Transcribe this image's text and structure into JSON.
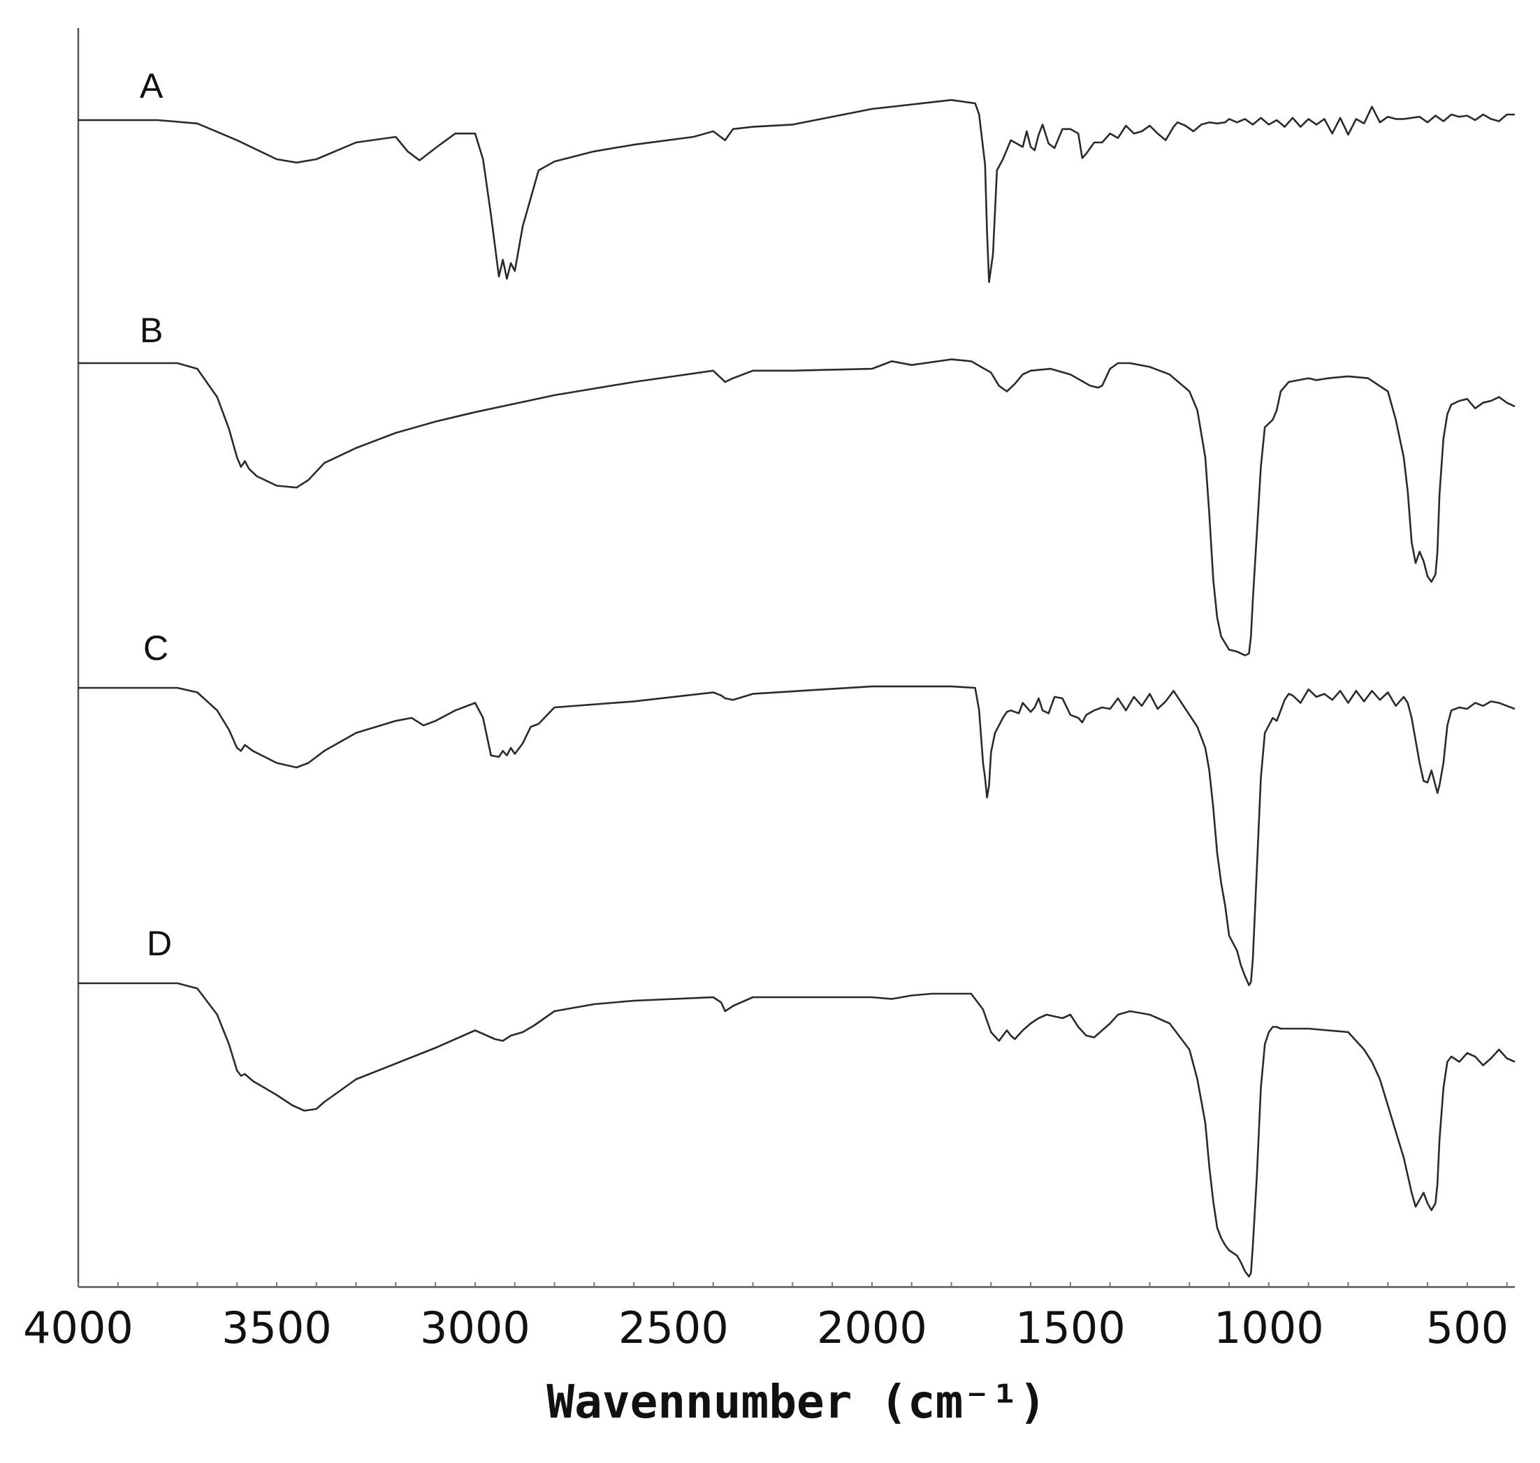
{
  "chart_data": {
    "type": "line",
    "xlabel": "Wavennumber (cm⁻¹)",
    "xlim": [
      4000,
      380
    ],
    "x_ticks": [
      4000,
      3500,
      3000,
      2500,
      2000,
      1500,
      1000,
      500
    ],
    "x_tick_labels": [
      "4000",
      "3500",
      "3000",
      "2500",
      "2000",
      "1500",
      "1000",
      "500"
    ],
    "grid": false,
    "legend": "none",
    "y_axis_note": "offset traces, no y-axis values",
    "series": [
      {
        "name": "A",
        "baseline": 0,
        "x": [
          4000,
          3800,
          3700,
          3600,
          3500,
          3450,
          3400,
          3300,
          3200,
          3170,
          3140,
          3100,
          3050,
          3000,
          2980,
          2960,
          2940,
          2930,
          2920,
          2910,
          2900,
          2880,
          2860,
          2840,
          2800,
          2700,
          2600,
          2450,
          2400,
          2370,
          2350,
          2300,
          2200,
          2000,
          1800,
          1740,
          1730,
          1715,
          1710,
          1705,
          1695,
          1685,
          1670,
          1650,
          1630,
          1620,
          1610,
          1600,
          1590,
          1580,
          1570,
          1555,
          1540,
          1520,
          1500,
          1480,
          1470,
          1460,
          1440,
          1420,
          1400,
          1380,
          1360,
          1340,
          1320,
          1300,
          1280,
          1260,
          1240,
          1230,
          1210,
          1190,
          1170,
          1150,
          1130,
          1110,
          1100,
          1080,
          1060,
          1040,
          1020,
          1000,
          980,
          960,
          940,
          920,
          900,
          880,
          860,
          840,
          820,
          800,
          780,
          760,
          740,
          720,
          700,
          680,
          660,
          640,
          620,
          600,
          580,
          560,
          540,
          520,
          500,
          480,
          460,
          440,
          420,
          400,
          380
        ],
        "y": [
          0,
          0,
          -0.3,
          -1.8,
          -3.5,
          -3.8,
          -3.5,
          -2.0,
          -1.5,
          -2.8,
          -3.6,
          -2.5,
          -1.2,
          -1.2,
          -3.5,
          -8.5,
          -14.0,
          -12.5,
          -14.2,
          -12.8,
          -13.5,
          -9.5,
          -7.0,
          -4.5,
          -3.7,
          -2.8,
          -2.2,
          -1.5,
          -1.0,
          -1.8,
          -0.8,
          -0.6,
          -0.4,
          1.0,
          1.8,
          1.5,
          0.5,
          -4.0,
          -10.0,
          -14.5,
          -12.0,
          -4.5,
          -3.5,
          -1.8,
          -2.2,
          -2.4,
          -1.0,
          -2.4,
          -2.7,
          -1.3,
          -0.4,
          -2.1,
          -2.5,
          -0.8,
          -0.8,
          -1.2,
          -3.4,
          -3.0,
          -2.0,
          -2.0,
          -1.2,
          -1.6,
          -0.5,
          -1.2,
          -1.0,
          -0.5,
          -1.2,
          -1.8,
          -0.6,
          -0.2,
          -0.5,
          -1.0,
          -0.4,
          -0.2,
          -0.3,
          -0.2,
          0.1,
          -0.2,
          0.1,
          -0.4,
          0.2,
          -0.4,
          0.0,
          -0.6,
          0.2,
          -0.6,
          0.1,
          -0.4,
          0.1,
          -1.2,
          0.2,
          -1.3,
          0.1,
          -0.3,
          1.2,
          -0.2,
          0.3,
          0.1,
          0.1,
          0.2,
          0.3,
          -0.2,
          0.4,
          -0.1,
          0.5,
          0.3,
          0.4,
          0.0,
          0.5,
          0.1,
          -0.1,
          0.5,
          0.5
        ]
      },
      {
        "name": "B",
        "baseline": 0,
        "x": [
          4000,
          3750,
          3700,
          3650,
          3620,
          3600,
          3590,
          3580,
          3570,
          3550,
          3500,
          3450,
          3420,
          3380,
          3300,
          3200,
          3100,
          3000,
          2800,
          2600,
          2400,
          2380,
          2370,
          2360,
          2350,
          2300,
          2200,
          2000,
          1950,
          1900,
          1800,
          1750,
          1700,
          1680,
          1660,
          1640,
          1620,
          1600,
          1550,
          1500,
          1450,
          1430,
          1420,
          1400,
          1380,
          1350,
          1300,
          1250,
          1200,
          1180,
          1160,
          1150,
          1140,
          1130,
          1120,
          1100,
          1080,
          1070,
          1060,
          1050,
          1045,
          1040,
          1030,
          1020,
          1010,
          1000,
          990,
          980,
          970,
          950,
          900,
          880,
          850,
          800,
          750,
          700,
          680,
          660,
          650,
          640,
          630,
          620,
          610,
          600,
          590,
          580,
          575,
          570,
          560,
          550,
          540,
          520,
          500,
          480,
          460,
          440,
          420,
          400,
          380
        ],
        "y": [
          0,
          0,
          -0.3,
          -1.8,
          -3.5,
          -5.0,
          -5.5,
          -5.2,
          -5.6,
          -6.0,
          -6.5,
          -6.6,
          -6.2,
          -5.3,
          -4.5,
          -3.7,
          -3.1,
          -2.6,
          -1.7,
          -1.0,
          -0.4,
          -0.8,
          -1.0,
          -0.9,
          -0.8,
          -0.4,
          -0.4,
          -0.3,
          0.1,
          -0.1,
          0.2,
          0.1,
          -0.5,
          -1.2,
          -1.5,
          -1.1,
          -0.6,
          -0.4,
          -0.3,
          -0.6,
          -1.2,
          -1.3,
          -1.2,
          -0.3,
          0.0,
          0.0,
          -0.2,
          -0.6,
          -1.5,
          -2.5,
          -5.0,
          -8.0,
          -11.5,
          -13.5,
          -14.5,
          -15.2,
          -15.3,
          -15.4,
          -15.5,
          -15.4,
          -14.5,
          -12.5,
          -9.0,
          -5.5,
          -3.4,
          -3.2,
          -3.0,
          -2.5,
          -1.5,
          -1.0,
          -0.8,
          -0.9,
          -0.8,
          -0.7,
          -0.8,
          -1.5,
          -3.0,
          -5.0,
          -6.8,
          -9.5,
          -10.6,
          -10.0,
          -10.5,
          -11.3,
          -11.6,
          -11.2,
          -10.0,
          -7.0,
          -4.0,
          -2.7,
          -2.2,
          -2.0,
          -1.9,
          -2.4,
          -2.1,
          -2.0,
          -1.8,
          -2.1,
          -2.3
        ]
      },
      {
        "name": "C",
        "baseline": 0,
        "x": [
          4000,
          3750,
          3700,
          3650,
          3620,
          3600,
          3590,
          3580,
          3560,
          3500,
          3450,
          3420,
          3380,
          3300,
          3200,
          3160,
          3130,
          3100,
          3050,
          3000,
          2980,
          2960,
          2940,
          2930,
          2920,
          2910,
          2900,
          2880,
          2860,
          2840,
          2800,
          2600,
          2400,
          2380,
          2370,
          2350,
          2300,
          2000,
          1800,
          1740,
          1730,
          1720,
          1715,
          1710,
          1705,
          1700,
          1690,
          1680,
          1670,
          1660,
          1650,
          1630,
          1620,
          1600,
          1590,
          1580,
          1570,
          1555,
          1540,
          1520,
          1500,
          1480,
          1470,
          1460,
          1440,
          1420,
          1400,
          1380,
          1360,
          1340,
          1320,
          1300,
          1280,
          1260,
          1240,
          1220,
          1200,
          1180,
          1160,
          1150,
          1140,
          1130,
          1120,
          1110,
          1100,
          1080,
          1070,
          1060,
          1050,
          1045,
          1040,
          1030,
          1020,
          1010,
          1000,
          990,
          980,
          970,
          960,
          950,
          940,
          920,
          900,
          880,
          860,
          840,
          820,
          800,
          780,
          760,
          740,
          720,
          700,
          680,
          660,
          650,
          640,
          630,
          620,
          610,
          600,
          590,
          580,
          575,
          570,
          560,
          550,
          540,
          520,
          500,
          480,
          460,
          440,
          420,
          400,
          380
        ],
        "y": [
          0,
          0,
          -0.3,
          -1.5,
          -2.8,
          -4.0,
          -4.2,
          -3.8,
          -4.2,
          -5.0,
          -5.3,
          -5.0,
          -4.2,
          -3.0,
          -2.2,
          -2.0,
          -2.5,
          -2.2,
          -1.5,
          -1.0,
          -2.0,
          -4.5,
          -4.6,
          -4.2,
          -4.5,
          -4.0,
          -4.4,
          -3.7,
          -2.6,
          -2.4,
          -1.3,
          -0.9,
          -0.3,
          -0.5,
          -0.7,
          -0.8,
          -0.4,
          0.1,
          0.1,
          0.0,
          -1.5,
          -5.0,
          -6.0,
          -7.3,
          -6.5,
          -4.3,
          -3.0,
          -2.5,
          -2.0,
          -1.6,
          -1.5,
          -1.7,
          -1.0,
          -1.6,
          -1.3,
          -0.7,
          -1.5,
          -1.7,
          -0.6,
          -0.7,
          -1.8,
          -2.0,
          -2.3,
          -1.8,
          -1.5,
          -1.3,
          -1.4,
          -0.7,
          -1.5,
          -0.6,
          -1.2,
          -0.4,
          -1.4,
          -0.9,
          -0.2,
          -1.0,
          -1.8,
          -2.6,
          -4.0,
          -5.5,
          -8.0,
          -11.0,
          -13.0,
          -14.5,
          -16.5,
          -17.5,
          -18.5,
          -19.2,
          -19.8,
          -19.6,
          -18.0,
          -12.0,
          -6.0,
          -3.0,
          -2.5,
          -2.0,
          -2.2,
          -1.5,
          -0.8,
          -0.4,
          -0.5,
          -1.0,
          -0.1,
          -0.6,
          -0.4,
          -0.8,
          -0.2,
          -1.0,
          -0.2,
          -0.9,
          -0.2,
          -0.8,
          -0.3,
          -1.2,
          -0.6,
          -1.0,
          -2.0,
          -3.5,
          -5.0,
          -6.2,
          -6.3,
          -5.5,
          -6.5,
          -7.0,
          -6.5,
          -5.0,
          -2.5,
          -1.5,
          -1.3,
          -1.4,
          -1.0,
          -1.2,
          -0.9,
          -1.0,
          -1.2,
          -1.4
        ]
      },
      {
        "name": "D",
        "baseline": 0,
        "x": [
          4000,
          3750,
          3700,
          3650,
          3620,
          3600,
          3590,
          3580,
          3560,
          3500,
          3460,
          3430,
          3400,
          3380,
          3300,
          3200,
          3100,
          3000,
          2950,
          2930,
          2910,
          2880,
          2850,
          2800,
          2700,
          2600,
          2400,
          2380,
          2370,
          2350,
          2300,
          2100,
          2000,
          1950,
          1900,
          1850,
          1800,
          1750,
          1720,
          1700,
          1680,
          1670,
          1660,
          1650,
          1640,
          1620,
          1600,
          1580,
          1560,
          1540,
          1520,
          1500,
          1480,
          1460,
          1440,
          1420,
          1400,
          1380,
          1350,
          1300,
          1250,
          1200,
          1180,
          1160,
          1150,
          1140,
          1130,
          1120,
          1110,
          1100,
          1080,
          1070,
          1060,
          1050,
          1045,
          1040,
          1030,
          1020,
          1010,
          1000,
          990,
          980,
          970,
          950,
          900,
          850,
          800,
          780,
          760,
          740,
          720,
          700,
          680,
          660,
          650,
          640,
          630,
          620,
          610,
          600,
          590,
          580,
          575,
          570,
          560,
          550,
          540,
          520,
          500,
          480,
          460,
          440,
          420,
          400,
          380
        ],
        "y": [
          0,
          0,
          -0.3,
          -1.8,
          -3.5,
          -5.0,
          -5.3,
          -5.2,
          -5.6,
          -6.4,
          -7.0,
          -7.3,
          -7.2,
          -6.8,
          -5.5,
          -4.6,
          -3.7,
          -2.7,
          -3.2,
          -3.3,
          -3.0,
          -2.8,
          -2.4,
          -1.6,
          -1.2,
          -1.0,
          -0.8,
          -1.1,
          -1.6,
          -1.3,
          -0.8,
          -0.8,
          -0.8,
          -0.9,
          -0.7,
          -0.6,
          -0.6,
          -0.6,
          -1.5,
          -2.8,
          -3.3,
          -3.0,
          -2.7,
          -3.0,
          -3.2,
          -2.7,
          -2.3,
          -2.0,
          -1.8,
          -1.9,
          -2.0,
          -1.8,
          -2.5,
          -3.0,
          -3.1,
          -2.7,
          -2.3,
          -1.8,
          -1.6,
          -1.8,
          -2.3,
          -3.8,
          -5.5,
          -8.0,
          -10.5,
          -12.5,
          -14.0,
          -14.6,
          -15.0,
          -15.3,
          -15.6,
          -16.0,
          -16.5,
          -16.8,
          -16.6,
          -15.0,
          -11.0,
          -6.0,
          -3.5,
          -2.8,
          -2.5,
          -2.5,
          -2.6,
          -2.6,
          -2.6,
          -2.7,
          -2.8,
          -3.3,
          -3.8,
          -4.5,
          -5.5,
          -7.0,
          -8.5,
          -10.0,
          -11.0,
          -12.0,
          -12.8,
          -12.4,
          -12.0,
          -12.6,
          -13.0,
          -12.6,
          -11.5,
          -9.0,
          -6.0,
          -4.5,
          -4.2,
          -4.5,
          -4.0,
          -4.2,
          -4.7,
          -4.3,
          -3.8,
          -4.3,
          -4.5
        ]
      }
    ]
  }
}
